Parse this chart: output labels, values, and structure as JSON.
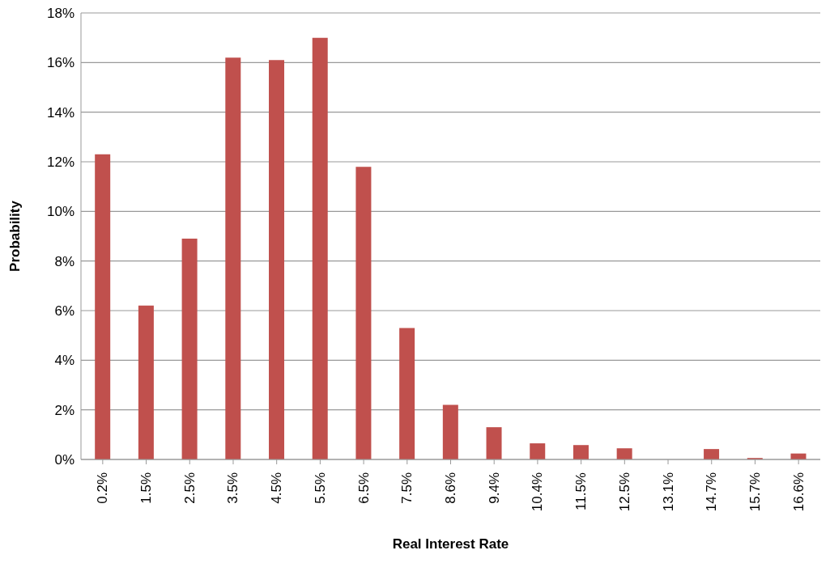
{
  "chart_data": {
    "type": "bar",
    "xlabel": "Real Interest Rate",
    "ylabel": "Probability",
    "categories": [
      "0.2%",
      "1.5%",
      "2.5%",
      "3.5%",
      "4.5%",
      "5.5%",
      "6.5%",
      "7.5%",
      "8.6%",
      "9.4%",
      "10.4%",
      "11.5%",
      "12.5%",
      "13.1%",
      "14.7%",
      "15.7%",
      "16.6%"
    ],
    "values": [
      12.3,
      6.2,
      8.9,
      16.2,
      16.1,
      17.0,
      11.8,
      5.3,
      2.2,
      1.3,
      0.65,
      0.58,
      0.45,
      0,
      0.42,
      0.06,
      0.24
    ],
    "color": "#c0504d",
    "ylim": [
      0,
      18
    ],
    "yticks": [
      {
        "value": 0,
        "label": "0%"
      },
      {
        "value": 2,
        "label": "2%"
      },
      {
        "value": 4,
        "label": "4%"
      },
      {
        "value": 6,
        "label": "6%"
      },
      {
        "value": 8,
        "label": "8%"
      },
      {
        "value": 10,
        "label": "10%"
      },
      {
        "value": 12,
        "label": "12%"
      },
      {
        "value": 14,
        "label": "14%"
      },
      {
        "value": 16,
        "label": "16%"
      },
      {
        "value": 18,
        "label": "18%"
      }
    ],
    "grid": "y"
  }
}
